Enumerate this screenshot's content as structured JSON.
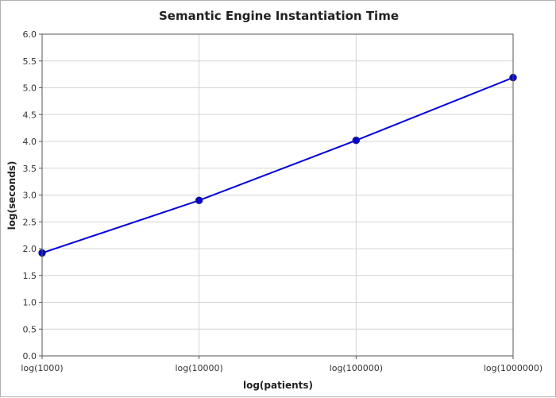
{
  "chart_data": {
    "type": "line",
    "title": "Semantic Engine Instantiation Time",
    "xlabel": "log(patients)",
    "ylabel": "log(seconds)",
    "categories": [
      "log(1000)",
      "log(10000)",
      "log(100000)",
      "log(1000000)"
    ],
    "series": [
      {
        "values": [
          1.92,
          2.9,
          4.02,
          5.19
        ],
        "color": "#0000dd",
        "marker_color": "#1a1a8c"
      }
    ],
    "ylim": [
      0,
      6
    ],
    "y_ticks": [
      0.0,
      0.5,
      1.0,
      1.5,
      2.0,
      2.5,
      3.0,
      3.5,
      4.0,
      4.5,
      5.0,
      5.5,
      6.0
    ],
    "y_tick_labels": [
      "0.0",
      "0.5",
      "1.0",
      "1.5",
      "2.0",
      "2.5",
      "3.0",
      "3.5",
      "4.0",
      "4.5",
      "5.0",
      "5.5",
      "6.0"
    ],
    "grid": true
  }
}
